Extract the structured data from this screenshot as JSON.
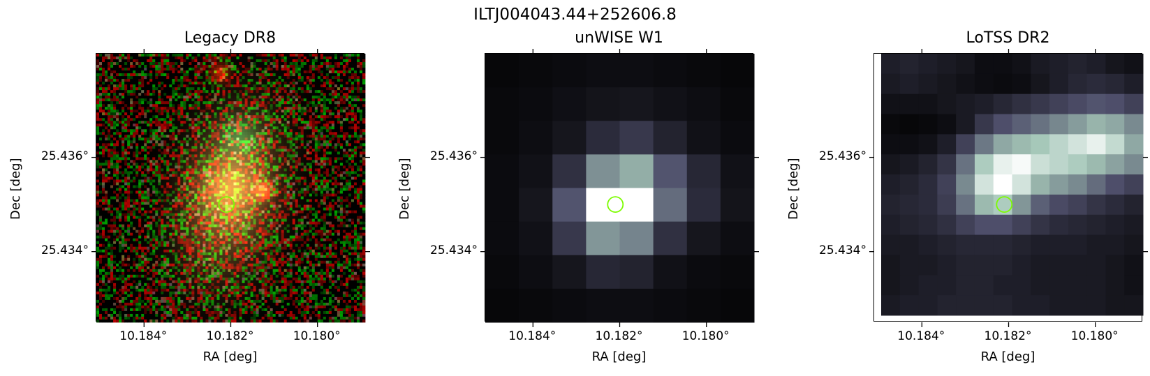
{
  "figure": {
    "suptitle": "ILTJ004043.44+252606.8",
    "marker_color": "#7cfc00"
  },
  "chart_data": [
    {
      "type": "heatmap",
      "title": "Legacy DR8",
      "image": "rgb optical cutout (noisy red/green background, extended orange galaxy, red star near top and right)",
      "xlabel": "RA [deg]",
      "ylabel": "Dec [deg]",
      "xticks": [
        "10.184°",
        "10.182°",
        "10.180°"
      ],
      "yticks": [
        "25.436°",
        "25.434°"
      ],
      "xtick_values": [
        10.184,
        10.182,
        10.18
      ],
      "ytick_values": [
        25.436,
        25.434
      ],
      "xlim": [
        10.1851,
        10.1789
      ],
      "ylim": [
        25.4325,
        25.4382
      ],
      "marker": {
        "ra": 10.1821,
        "dec": 25.435,
        "shape": "circle"
      }
    },
    {
      "type": "heatmap",
      "title": "unWISE W1",
      "colormap": "bone",
      "xlabel": "RA [deg]",
      "ylabel": "Dec [deg]",
      "xticks": [
        "10.184°",
        "10.182°",
        "10.180°"
      ],
      "yticks": [
        "25.436°",
        "25.434°"
      ],
      "xtick_values": [
        10.184,
        10.182,
        10.18
      ],
      "ytick_values": [
        25.436,
        25.434
      ],
      "xlim": [
        10.1851,
        10.1789
      ],
      "ylim": [
        25.4325,
        25.4382
      ],
      "marker": {
        "ra": 10.1821,
        "dec": 25.435,
        "shape": "circle"
      },
      "grid": [
        [
          0.03,
          0.04,
          0.05,
          0.06,
          0.06,
          0.05,
          0.04,
          0.03
        ],
        [
          0.04,
          0.05,
          0.07,
          0.09,
          0.1,
          0.08,
          0.06,
          0.04
        ],
        [
          0.04,
          0.06,
          0.1,
          0.2,
          0.26,
          0.16,
          0.08,
          0.05
        ],
        [
          0.05,
          0.08,
          0.22,
          0.58,
          0.68,
          0.38,
          0.18,
          0.08
        ],
        [
          0.05,
          0.1,
          0.38,
          1.0,
          1.0,
          0.46,
          0.2,
          0.09
        ],
        [
          0.05,
          0.08,
          0.26,
          0.6,
          0.54,
          0.22,
          0.1,
          0.06
        ],
        [
          0.04,
          0.06,
          0.1,
          0.18,
          0.16,
          0.08,
          0.05,
          0.04
        ],
        [
          0.03,
          0.04,
          0.05,
          0.06,
          0.06,
          0.05,
          0.04,
          0.03
        ]
      ]
    },
    {
      "type": "heatmap",
      "title": "LoTSS DR2",
      "colormap": "bone",
      "xlabel": "RA [deg]",
      "ylabel": "Dec [deg]",
      "xticks": [
        "10.184°",
        "10.182°",
        "10.180°"
      ],
      "yticks": [
        "25.436°",
        "25.434°"
      ],
      "xtick_values": [
        10.184,
        10.182,
        10.18
      ],
      "ytick_values": [
        25.436,
        25.434
      ],
      "xlim": [
        10.1851,
        10.1789
      ],
      "ylim": [
        25.4325,
        25.4382
      ],
      "marker": {
        "ra": 10.1821,
        "dec": 25.435,
        "shape": "circle"
      },
      "grid": [
        [
          0.14,
          0.16,
          0.14,
          0.12,
          0.1,
          0.06,
          0.06,
          0.08,
          0.12,
          0.14,
          0.16,
          0.14,
          0.1,
          0.08
        ],
        [
          0.12,
          0.14,
          0.12,
          0.1,
          0.08,
          0.06,
          0.05,
          0.06,
          0.1,
          0.14,
          0.18,
          0.2,
          0.18,
          0.14
        ],
        [
          0.08,
          0.08,
          0.08,
          0.1,
          0.12,
          0.14,
          0.18,
          0.22,
          0.26,
          0.3,
          0.34,
          0.38,
          0.36,
          0.3
        ],
        [
          0.04,
          0.03,
          0.04,
          0.06,
          0.12,
          0.26,
          0.36,
          0.42,
          0.48,
          0.55,
          0.62,
          0.7,
          0.66,
          0.56
        ],
        [
          0.06,
          0.06,
          0.08,
          0.14,
          0.3,
          0.5,
          0.66,
          0.72,
          0.76,
          0.82,
          0.88,
          0.94,
          0.84,
          0.66
        ],
        [
          0.1,
          0.12,
          0.16,
          0.24,
          0.48,
          0.78,
          0.94,
          0.98,
          0.86,
          0.82,
          0.78,
          0.72,
          0.64,
          0.56
        ],
        [
          0.14,
          0.16,
          0.2,
          0.3,
          0.56,
          0.88,
          1.0,
          0.88,
          0.7,
          0.62,
          0.56,
          0.46,
          0.36,
          0.3
        ],
        [
          0.16,
          0.18,
          0.2,
          0.28,
          0.48,
          0.72,
          0.78,
          0.6,
          0.42,
          0.34,
          0.3,
          0.24,
          0.2,
          0.16
        ],
        [
          0.14,
          0.16,
          0.18,
          0.22,
          0.3,
          0.36,
          0.36,
          0.3,
          0.24,
          0.2,
          0.18,
          0.16,
          0.14,
          0.12
        ],
        [
          0.12,
          0.12,
          0.14,
          0.16,
          0.18,
          0.18,
          0.18,
          0.16,
          0.14,
          0.14,
          0.14,
          0.12,
          0.12,
          0.1
        ],
        [
          0.1,
          0.12,
          0.12,
          0.14,
          0.16,
          0.16,
          0.16,
          0.14,
          0.12,
          0.12,
          0.12,
          0.12,
          0.1,
          0.08
        ],
        [
          0.1,
          0.12,
          0.14,
          0.14,
          0.16,
          0.16,
          0.14,
          0.14,
          0.12,
          0.12,
          0.12,
          0.12,
          0.1,
          0.08
        ],
        [
          0.12,
          0.14,
          0.14,
          0.16,
          0.16,
          0.16,
          0.16,
          0.14,
          0.14,
          0.12,
          0.12,
          0.12,
          0.1,
          0.1
        ]
      ],
      "blank_border": "white strip along left and bottom edges"
    }
  ]
}
